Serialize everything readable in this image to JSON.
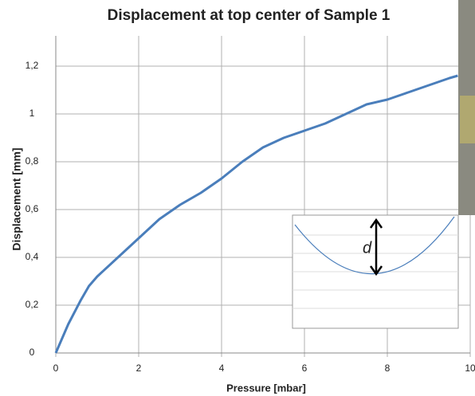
{
  "chart_data": {
    "type": "line",
    "title": "Displacement at top center of Sample 1",
    "x_label": "Pressure [mbar]",
    "y_label": "Displacement [mm]",
    "x": [
      0,
      0.3,
      0.6,
      0.8,
      1,
      1.5,
      2,
      2.5,
      3,
      3.5,
      4,
      4.5,
      5,
      5.5,
      6,
      6.5,
      7,
      7.5,
      8,
      8.5,
      9,
      9.5,
      9.7
    ],
    "values": [
      0,
      0.12,
      0.22,
      0.28,
      0.32,
      0.4,
      0.48,
      0.56,
      0.62,
      0.67,
      0.73,
      0.8,
      0.86,
      0.9,
      0.93,
      0.96,
      1.0,
      1.04,
      1.06,
      1.09,
      1.12,
      1.15,
      1.16
    ],
    "color": "#4a7ebb",
    "xlim": [
      0,
      10
    ],
    "xticks": [
      0,
      2,
      4,
      6,
      8,
      10
    ],
    "ylim": [
      0,
      1.3
    ],
    "yticks": [
      0,
      {
        "value": 0.2,
        "label": "0,2"
      },
      {
        "value": 0.4,
        "label": "0,4"
      },
      {
        "value": 0.6,
        "label": "0,6"
      },
      {
        "value": 0.8,
        "label": "0,8"
      },
      1,
      {
        "value": 1.2,
        "label": "1,2"
      }
    ],
    "grid": true,
    "inset_label": "d"
  }
}
